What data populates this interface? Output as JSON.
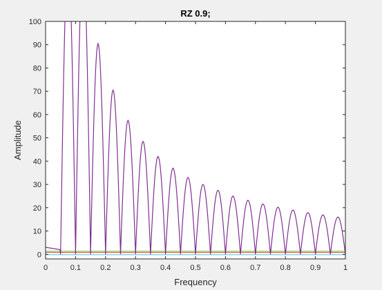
{
  "chart_data": {
    "type": "line",
    "title": "RZ 0.9;",
    "xlabel": "Frequency",
    "ylabel": "Amplitude",
    "xlim": [
      0,
      1
    ],
    "ylim": [
      0,
      100
    ],
    "xticks": [
      "0",
      "0.1",
      "0.2",
      "0.3",
      "0.4",
      "0.5",
      "0.6",
      "0.7",
      "0.8",
      "0.9",
      "1"
    ],
    "yticks": [
      "0",
      "10",
      "20",
      "30",
      "40",
      "50",
      "60",
      "70",
      "80",
      "90",
      "100"
    ],
    "grid": false,
    "series": [
      {
        "color": "#7e2f8e",
        "description": "spectral lobes: zeros at multiples of 0.05, peaks decreasing",
        "peaks": [
          {
            "x": 0.075,
            "y": 127
          },
          {
            "x": 0.125,
            "y": 127
          },
          {
            "x": 0.175,
            "y": 90.5
          },
          {
            "x": 0.225,
            "y": 70.5
          },
          {
            "x": 0.275,
            "y": 57.5
          },
          {
            "x": 0.325,
            "y": 48.5
          },
          {
            "x": 0.375,
            "y": 42
          },
          {
            "x": 0.425,
            "y": 37
          },
          {
            "x": 0.475,
            "y": 33
          },
          {
            "x": 0.525,
            "y": 30
          },
          {
            "x": 0.575,
            "y": 27.5
          },
          {
            "x": 0.625,
            "y": 25
          },
          {
            "x": 0.675,
            "y": 23.2
          },
          {
            "x": 0.725,
            "y": 21.6
          },
          {
            "x": 0.775,
            "y": 20.2
          },
          {
            "x": 0.825,
            "y": 19
          },
          {
            "x": 0.875,
            "y": 17.9
          },
          {
            "x": 0.925,
            "y": 16.9
          },
          {
            "x": 0.975,
            "y": 16
          }
        ],
        "zeros": [
          0.05,
          0.1,
          0.15,
          0.2,
          0.25,
          0.3,
          0.35,
          0.4,
          0.45,
          0.5,
          0.55,
          0.6,
          0.65,
          0.7,
          0.75,
          0.8,
          0.85,
          0.9,
          0.95,
          1.0
        ],
        "spike_at": {
          "x": 0.0,
          "y": 3
        }
      },
      {
        "color": "#d95319",
        "values": {
          "x": [
            0,
            1
          ],
          "y": [
            0.8,
            0.8
          ]
        }
      },
      {
        "color": "#77ac30",
        "values": {
          "x": [
            0,
            1
          ],
          "y": [
            1.3,
            1.3
          ]
        }
      },
      {
        "color": "#4dbeee",
        "values": {
          "x": [
            0,
            1
          ],
          "y": [
            -0.2,
            -0.2
          ]
        }
      }
    ]
  }
}
